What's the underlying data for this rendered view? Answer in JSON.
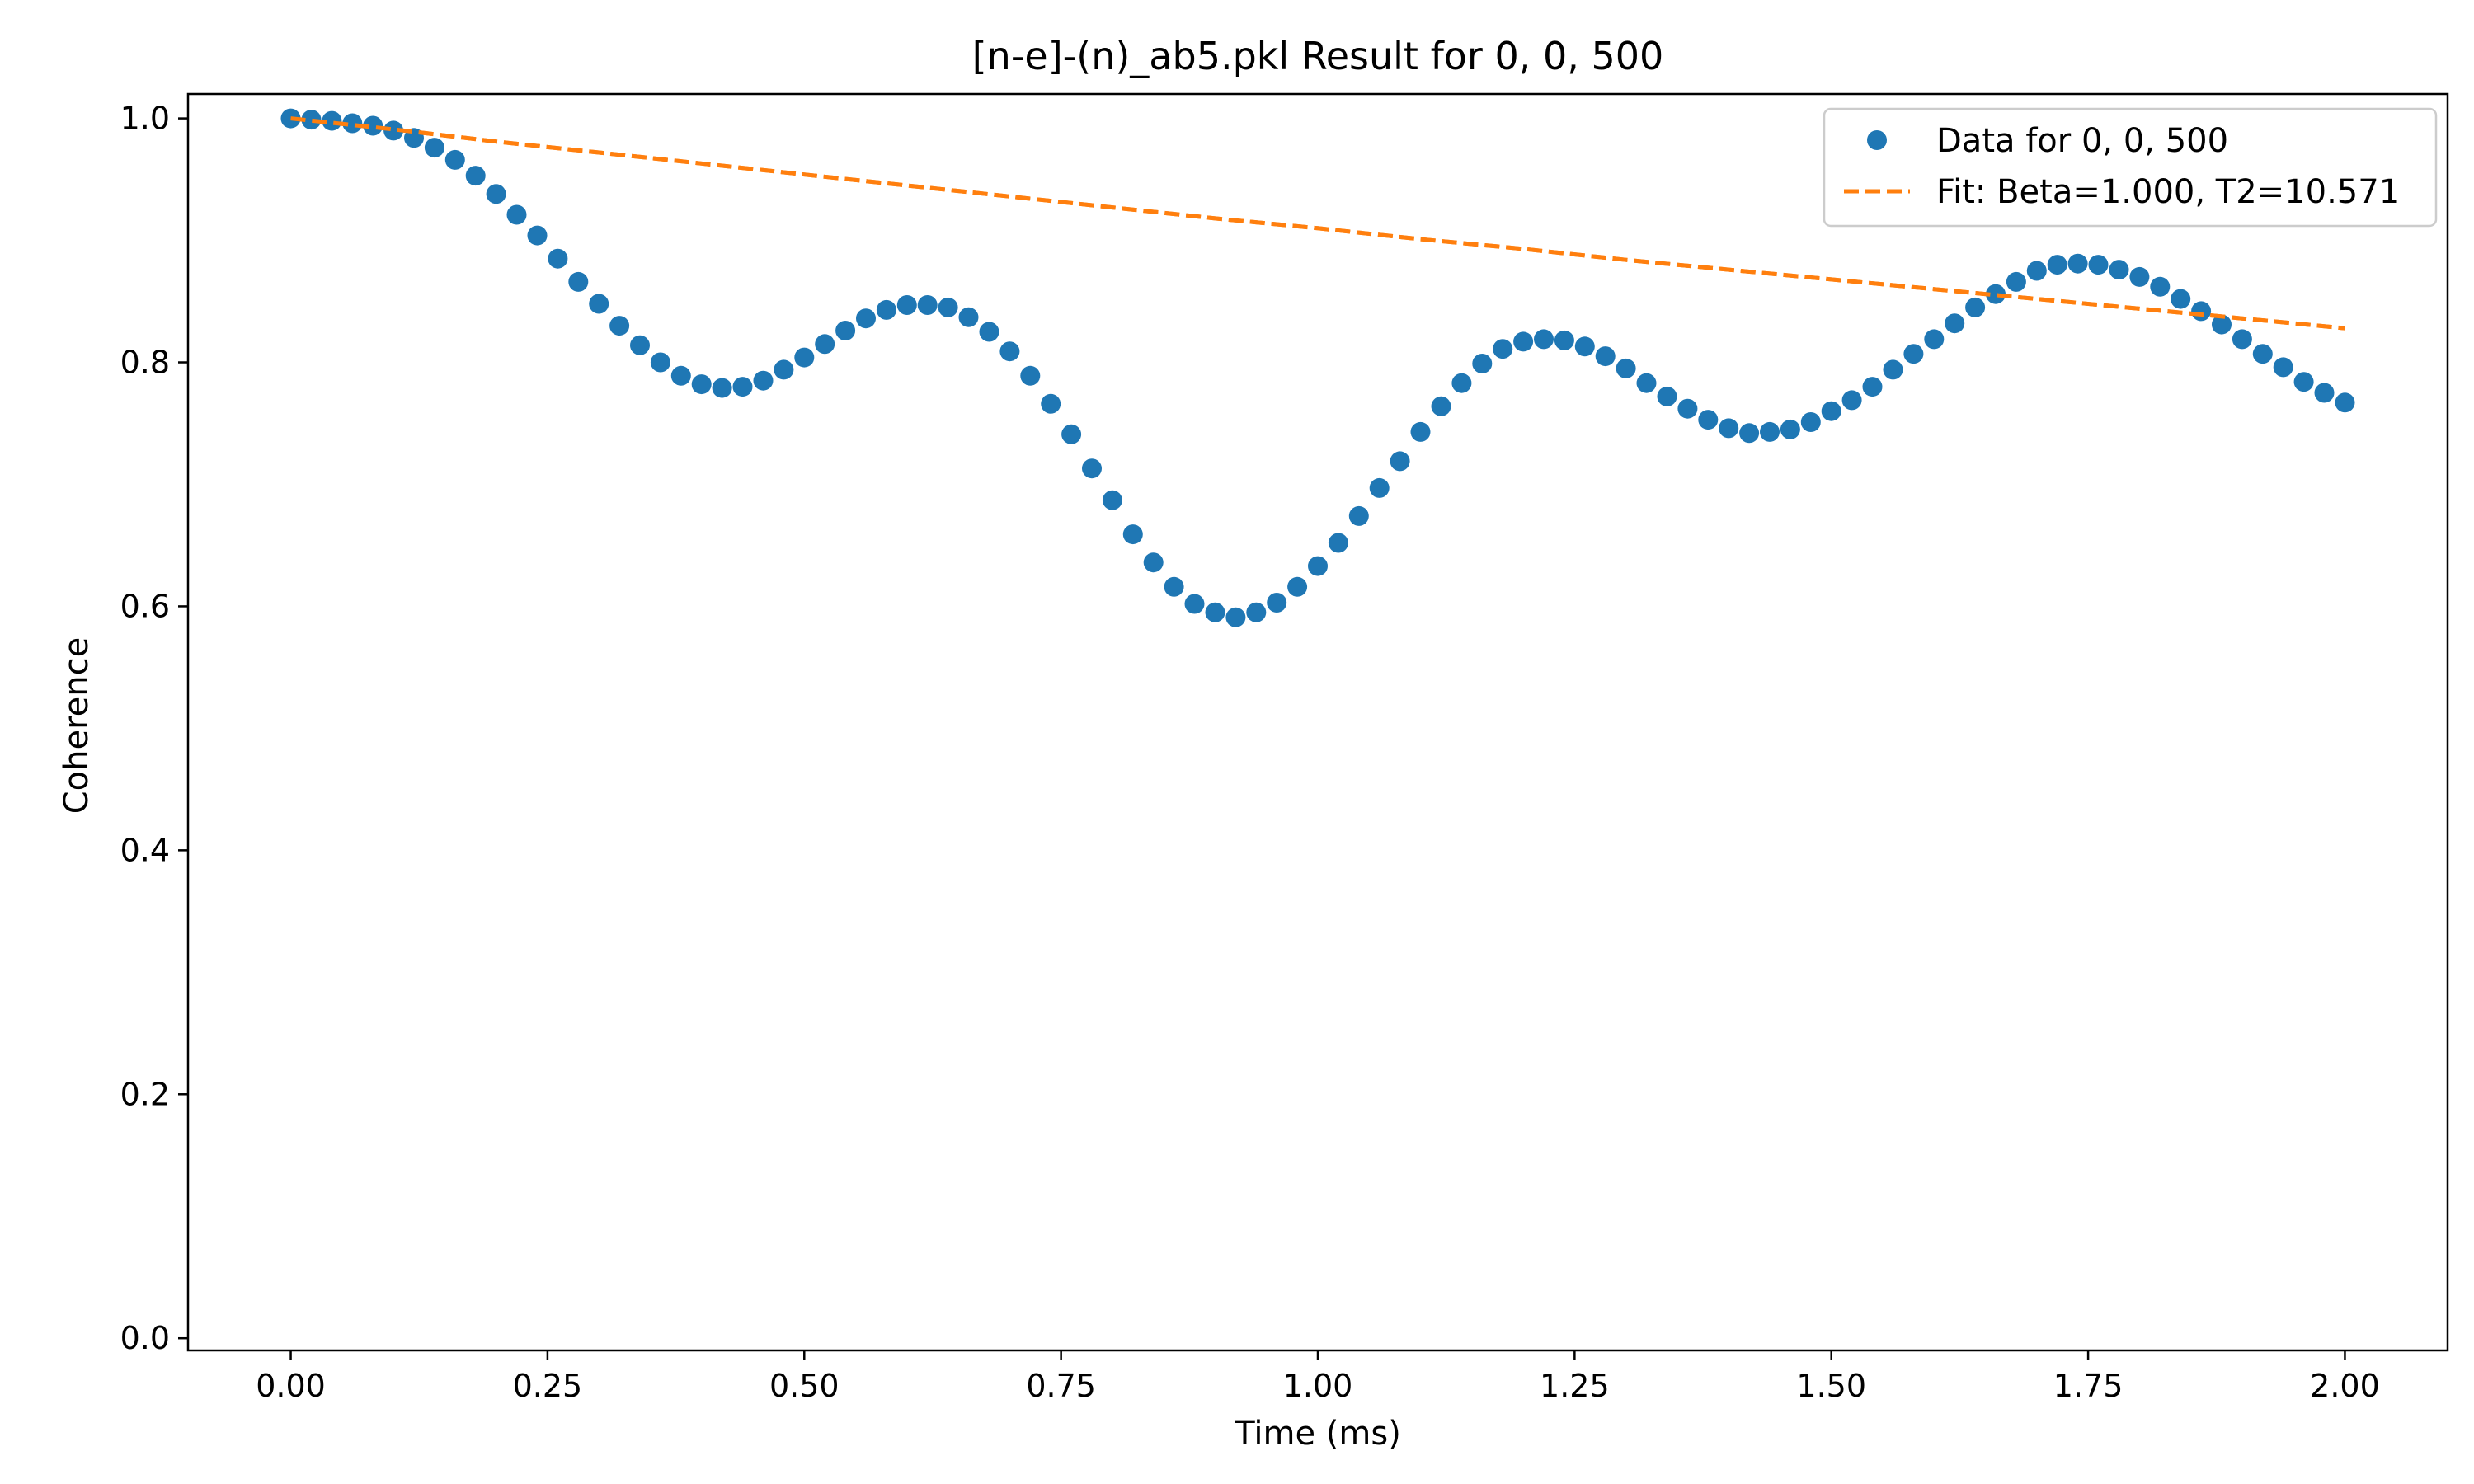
{
  "chart_data": {
    "type": "scatter",
    "title": "[n-e]-(n)_ab5.pkl Result for 0, 0, 500",
    "xlabel": "Time (ms)",
    "ylabel": "Coherence",
    "xlim": [
      -0.1,
      2.1
    ],
    "ylim": [
      -0.01,
      1.02
    ],
    "xticks": [
      "0.00",
      "0.25",
      "0.50",
      "0.75",
      "1.00",
      "1.25",
      "1.50",
      "1.75",
      "2.00"
    ],
    "yticks": [
      "0.0",
      "0.2",
      "0.4",
      "0.6",
      "0.8",
      "1.0"
    ],
    "grid": false,
    "legend_position": "top-right",
    "series": [
      {
        "name": "Data for 0, 0, 500",
        "kind": "scatter",
        "color": "#1f77b4",
        "x": [
          0.0,
          0.02,
          0.04,
          0.06,
          0.08,
          0.1,
          0.12,
          0.14,
          0.16,
          0.18,
          0.2,
          0.22,
          0.24,
          0.26,
          0.28,
          0.3,
          0.32,
          0.34,
          0.36,
          0.38,
          0.4,
          0.42,
          0.44,
          0.46,
          0.48,
          0.5,
          0.52,
          0.54,
          0.56,
          0.58,
          0.6,
          0.62,
          0.64,
          0.66,
          0.68,
          0.7,
          0.72,
          0.74,
          0.76,
          0.78,
          0.8,
          0.82,
          0.84,
          0.86,
          0.88,
          0.9,
          0.92,
          0.94,
          0.96,
          0.98,
          1.0,
          1.02,
          1.04,
          1.06,
          1.08,
          1.1,
          1.12,
          1.14,
          1.16,
          1.18,
          1.2,
          1.22,
          1.24,
          1.26,
          1.28,
          1.3,
          1.32,
          1.34,
          1.36,
          1.38,
          1.4,
          1.42,
          1.44,
          1.46,
          1.48,
          1.5,
          1.52,
          1.54,
          1.56,
          1.58,
          1.6,
          1.62,
          1.64,
          1.66,
          1.68,
          1.7,
          1.72,
          1.74,
          1.76,
          1.78,
          1.8,
          1.82,
          1.84,
          1.86,
          1.88,
          1.9,
          1.92,
          1.94,
          1.96,
          1.98,
          2.0
        ],
        "y": [
          1.0,
          0.999,
          0.998,
          0.996,
          0.994,
          0.99,
          0.984,
          0.976,
          0.966,
          0.953,
          0.938,
          0.921,
          0.904,
          0.885,
          0.866,
          0.848,
          0.83,
          0.814,
          0.8,
          0.789,
          0.782,
          0.779,
          0.78,
          0.785,
          0.794,
          0.804,
          0.815,
          0.826,
          0.836,
          0.843,
          0.847,
          0.847,
          0.845,
          0.837,
          0.825,
          0.809,
          0.789,
          0.766,
          0.741,
          0.713,
          0.687,
          0.659,
          0.636,
          0.616,
          0.602,
          0.595,
          0.591,
          0.595,
          0.603,
          0.616,
          0.633,
          0.652,
          0.674,
          0.697,
          0.719,
          0.743,
          0.764,
          0.783,
          0.799,
          0.811,
          0.817,
          0.819,
          0.818,
          0.813,
          0.805,
          0.795,
          0.783,
          0.772,
          0.762,
          0.753,
          0.746,
          0.742,
          0.743,
          0.745,
          0.751,
          0.76,
          0.769,
          0.78,
          0.794,
          0.807,
          0.819,
          0.832,
          0.845,
          0.856,
          0.866,
          0.875,
          0.88,
          0.881,
          0.88,
          0.876,
          0.87,
          0.862,
          0.852,
          0.842,
          0.831,
          0.819,
          0.807,
          0.796,
          0.784,
          0.775,
          0.767
        ]
      },
      {
        "name": "Fit: Beta=1.000, T2=10.571",
        "kind": "line",
        "style": "dashed",
        "color": "#ff7f0e",
        "x": [
          0.0,
          0.1,
          0.2,
          0.3,
          0.4,
          0.5,
          0.6,
          0.7,
          0.8,
          0.9,
          1.0,
          1.1,
          1.2,
          1.3,
          1.4,
          1.5,
          1.6,
          1.7,
          1.8,
          1.9,
          2.0
        ],
        "y": [
          1.0,
          0.991,
          0.981,
          0.972,
          0.963,
          0.954,
          0.945,
          0.936,
          0.927,
          0.918,
          0.91,
          0.901,
          0.893,
          0.884,
          0.876,
          0.868,
          0.86,
          0.852,
          0.844,
          0.836,
          0.828
        ]
      }
    ]
  }
}
